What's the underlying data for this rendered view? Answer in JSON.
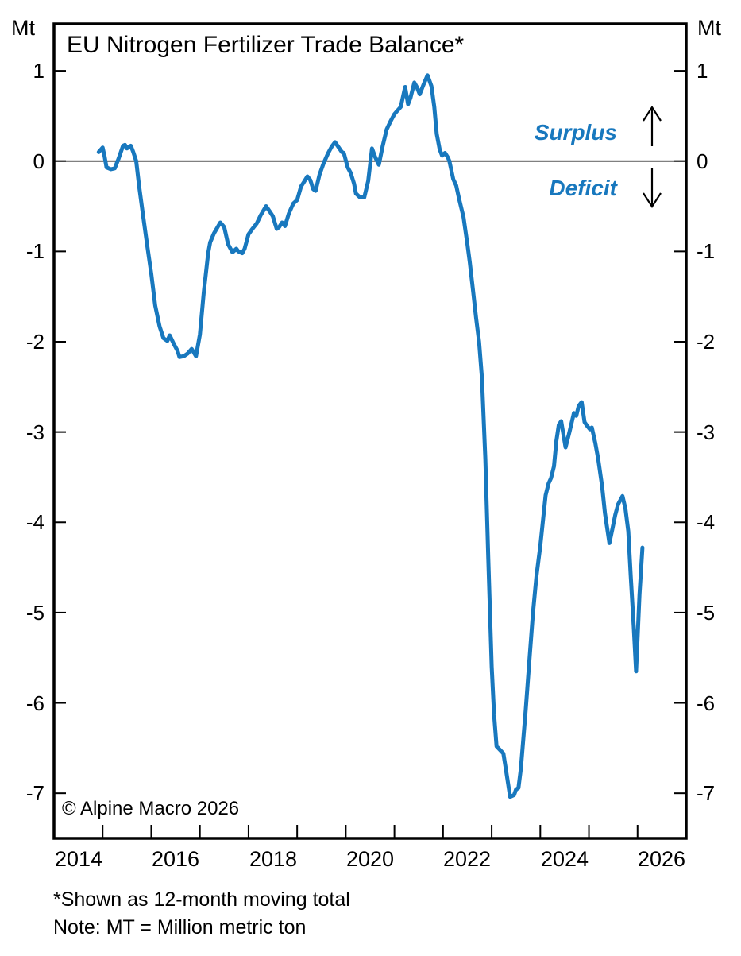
{
  "chart_data": {
    "type": "line",
    "title": "EU Nitrogen Fertilizer Trade Balance*",
    "unit_label": "Mt",
    "grid": false,
    "legend_position": "none",
    "x_axis": {
      "range": [
        2014,
        2027
      ],
      "tick_years": [
        2015,
        2016,
        2017,
        2018,
        2019,
        2020,
        2021,
        2022,
        2023,
        2024,
        2025,
        2026
      ],
      "label_years": [
        "2014",
        "2016",
        "2018",
        "2020",
        "2022",
        "2024",
        "2026"
      ]
    },
    "y_axis": {
      "range": [
        -7.5,
        1.52
      ],
      "ticks": [
        "1",
        "0",
        "-1",
        "-2",
        "-3",
        "-4",
        "-5",
        "-6",
        "-7"
      ],
      "tick_values": [
        1,
        0,
        -1,
        -2,
        -3,
        -4,
        -5,
        -6,
        -7
      ],
      "zero_line": true,
      "sides": "both"
    },
    "series": [
      {
        "name": "EU nitrogen fertilizer trade balance, 12-month moving total (Mt)",
        "color": "#1878BE",
        "points": [
          [
            2014.92,
            0.1
          ],
          [
            2015.0,
            0.15
          ],
          [
            2015.04,
            0.05
          ],
          [
            2015.08,
            -0.07
          ],
          [
            2015.17,
            -0.09
          ],
          [
            2015.25,
            -0.08
          ],
          [
            2015.33,
            0.03
          ],
          [
            2015.42,
            0.17
          ],
          [
            2015.46,
            0.18
          ],
          [
            2015.5,
            0.14
          ],
          [
            2015.58,
            0.17
          ],
          [
            2015.63,
            0.1
          ],
          [
            2015.69,
            0.0
          ],
          [
            2015.75,
            -0.28
          ],
          [
            2015.83,
            -0.6
          ],
          [
            2015.92,
            -0.95
          ],
          [
            2016.0,
            -1.25
          ],
          [
            2016.08,
            -1.6
          ],
          [
            2016.17,
            -1.83
          ],
          [
            2016.25,
            -1.96
          ],
          [
            2016.33,
            -1.99
          ],
          [
            2016.38,
            -1.93
          ],
          [
            2016.46,
            -2.02
          ],
          [
            2016.54,
            -2.1
          ],
          [
            2016.58,
            -2.17
          ],
          [
            2016.67,
            -2.16
          ],
          [
            2016.75,
            -2.13
          ],
          [
            2016.83,
            -2.08
          ],
          [
            2016.92,
            -2.16
          ],
          [
            2017.0,
            -1.92
          ],
          [
            2017.08,
            -1.45
          ],
          [
            2017.17,
            -1.02
          ],
          [
            2017.21,
            -0.9
          ],
          [
            2017.29,
            -0.8
          ],
          [
            2017.42,
            -0.68
          ],
          [
            2017.5,
            -0.73
          ],
          [
            2017.58,
            -0.92
          ],
          [
            2017.67,
            -1.01
          ],
          [
            2017.75,
            -0.97
          ],
          [
            2017.79,
            -1.0
          ],
          [
            2017.87,
            -1.02
          ],
          [
            2017.92,
            -0.97
          ],
          [
            2018.0,
            -0.81
          ],
          [
            2018.08,
            -0.75
          ],
          [
            2018.17,
            -0.69
          ],
          [
            2018.25,
            -0.6
          ],
          [
            2018.36,
            -0.5
          ],
          [
            2018.44,
            -0.56
          ],
          [
            2018.5,
            -0.61
          ],
          [
            2018.58,
            -0.75
          ],
          [
            2018.63,
            -0.73
          ],
          [
            2018.69,
            -0.68
          ],
          [
            2018.75,
            -0.72
          ],
          [
            2018.83,
            -0.58
          ],
          [
            2018.92,
            -0.47
          ],
          [
            2019.0,
            -0.43
          ],
          [
            2019.08,
            -0.28
          ],
          [
            2019.13,
            -0.24
          ],
          [
            2019.21,
            -0.17
          ],
          [
            2019.27,
            -0.21
          ],
          [
            2019.33,
            -0.31
          ],
          [
            2019.38,
            -0.33
          ],
          [
            2019.46,
            -0.15
          ],
          [
            2019.54,
            -0.03
          ],
          [
            2019.63,
            0.08
          ],
          [
            2019.71,
            0.16
          ],
          [
            2019.78,
            0.21
          ],
          [
            2019.83,
            0.17
          ],
          [
            2019.92,
            0.1
          ],
          [
            2019.96,
            0.09
          ],
          [
            2020.04,
            -0.07
          ],
          [
            2020.1,
            -0.13
          ],
          [
            2020.17,
            -0.25
          ],
          [
            2020.21,
            -0.36
          ],
          [
            2020.29,
            -0.4
          ],
          [
            2020.38,
            -0.4
          ],
          [
            2020.46,
            -0.22
          ],
          [
            2020.54,
            0.14
          ],
          [
            2020.6,
            0.05
          ],
          [
            2020.68,
            -0.04
          ],
          [
            2020.76,
            0.17
          ],
          [
            2020.84,
            0.35
          ],
          [
            2020.92,
            0.44
          ],
          [
            2021.0,
            0.52
          ],
          [
            2021.08,
            0.57
          ],
          [
            2021.13,
            0.6
          ],
          [
            2021.22,
            0.82
          ],
          [
            2021.28,
            0.63
          ],
          [
            2021.33,
            0.7
          ],
          [
            2021.41,
            0.87
          ],
          [
            2021.46,
            0.82
          ],
          [
            2021.52,
            0.74
          ],
          [
            2021.6,
            0.85
          ],
          [
            2021.68,
            0.95
          ],
          [
            2021.76,
            0.83
          ],
          [
            2021.82,
            0.6
          ],
          [
            2021.87,
            0.3
          ],
          [
            2021.93,
            0.13
          ],
          [
            2021.98,
            0.06
          ],
          [
            2022.04,
            0.09
          ],
          [
            2022.1,
            0.04
          ],
          [
            2022.13,
            0.0
          ],
          [
            2022.21,
            -0.2
          ],
          [
            2022.27,
            -0.27
          ],
          [
            2022.33,
            -0.42
          ],
          [
            2022.42,
            -0.62
          ],
          [
            2022.5,
            -0.92
          ],
          [
            2022.55,
            -1.12
          ],
          [
            2022.62,
            -1.45
          ],
          [
            2022.68,
            -1.74
          ],
          [
            2022.74,
            -2.0
          ],
          [
            2022.8,
            -2.4
          ],
          [
            2022.87,
            -3.3
          ],
          [
            2022.93,
            -4.4
          ],
          [
            2023.0,
            -5.6
          ],
          [
            2023.05,
            -6.13
          ],
          [
            2023.1,
            -6.48
          ],
          [
            2023.17,
            -6.52
          ],
          [
            2023.24,
            -6.56
          ],
          [
            2023.3,
            -6.76
          ],
          [
            2023.38,
            -7.04
          ],
          [
            2023.46,
            -7.02
          ],
          [
            2023.5,
            -6.96
          ],
          [
            2023.55,
            -6.94
          ],
          [
            2023.6,
            -6.73
          ],
          [
            2023.65,
            -6.4
          ],
          [
            2023.7,
            -6.08
          ],
          [
            2023.78,
            -5.5
          ],
          [
            2023.85,
            -5.0
          ],
          [
            2023.92,
            -4.6
          ],
          [
            2024.0,
            -4.26
          ],
          [
            2024.06,
            -3.95
          ],
          [
            2024.11,
            -3.7
          ],
          [
            2024.17,
            -3.57
          ],
          [
            2024.22,
            -3.51
          ],
          [
            2024.28,
            -3.38
          ],
          [
            2024.33,
            -3.1
          ],
          [
            2024.38,
            -2.92
          ],
          [
            2024.43,
            -2.88
          ],
          [
            2024.52,
            -3.17
          ],
          [
            2024.6,
            -3.0
          ],
          [
            2024.69,
            -2.79
          ],
          [
            2024.74,
            -2.82
          ],
          [
            2024.79,
            -2.71
          ],
          [
            2024.85,
            -2.67
          ],
          [
            2024.91,
            -2.89
          ],
          [
            2024.96,
            -2.93
          ],
          [
            2025.02,
            -2.97
          ],
          [
            2025.06,
            -2.95
          ],
          [
            2025.13,
            -3.12
          ],
          [
            2025.19,
            -3.3
          ],
          [
            2025.27,
            -3.6
          ],
          [
            2025.33,
            -3.9
          ],
          [
            2025.42,
            -4.23
          ],
          [
            2025.48,
            -4.08
          ],
          [
            2025.54,
            -3.92
          ],
          [
            2025.6,
            -3.8
          ],
          [
            2025.69,
            -3.71
          ],
          [
            2025.75,
            -3.85
          ],
          [
            2025.81,
            -4.1
          ],
          [
            2025.86,
            -4.6
          ],
          [
            2025.92,
            -5.15
          ],
          [
            2025.97,
            -5.65
          ],
          [
            2026.04,
            -4.8
          ],
          [
            2026.1,
            -4.28
          ]
        ]
      }
    ],
    "annotations": {
      "color": "#1878BE",
      "surplus": {
        "text": "Surplus",
        "arrow": "up"
      },
      "deficit": {
        "text": "Deficit",
        "arrow": "down"
      }
    }
  },
  "watermark": {
    "copyright": "© Alpine Macro 2026"
  },
  "footnotes": [
    "*Shown as 12-month moving total",
    "Note: MT = Million metric ton"
  ]
}
